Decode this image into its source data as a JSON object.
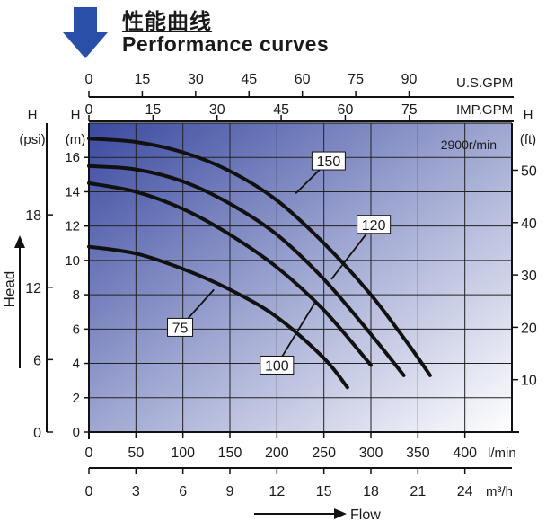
{
  "header": {
    "title_cn": "性能曲线",
    "title_en": "Performance curves"
  },
  "chart_data": {
    "type": "line",
    "speed_label": "2900r/min",
    "colors": {
      "gradient_start": "#3b4aa0",
      "gradient_end": "#ffffff",
      "curve": "#111111",
      "arrow": "#2a4fa8"
    },
    "axes": {
      "x_lmin": {
        "unit": "l/min",
        "ticks": [
          "0",
          "50",
          "100",
          "150",
          "200",
          "250",
          "300",
          "350",
          "400"
        ],
        "range": [
          0,
          450
        ]
      },
      "x_m3h": {
        "unit": "m³/h",
        "ticks": [
          "0",
          "3",
          "6",
          "9",
          "12",
          "15",
          "18",
          "21",
          "24"
        ],
        "range": [
          0,
          27
        ]
      },
      "x_usgpm": {
        "unit": "U.S.GPM",
        "ticks": [
          "0",
          "15",
          "30",
          "45",
          "60",
          "75",
          "90"
        ],
        "range": [
          0,
          118.9
        ]
      },
      "x_impgpm": {
        "unit": "IMP.GPM",
        "ticks": [
          "0",
          "15",
          "30",
          "45",
          "60",
          "75"
        ],
        "range": [
          0,
          99
        ]
      },
      "y_m": {
        "unit_top": "H",
        "unit": "(m)",
        "ticks": [
          "0",
          "2",
          "4",
          "6",
          "8",
          "10",
          "12",
          "14",
          "16"
        ],
        "range": [
          0,
          18
        ]
      },
      "y_psi": {
        "unit_top": "H",
        "unit": "(psi)",
        "ticks": [
          "0",
          "6",
          "12",
          "18"
        ],
        "range": [
          0,
          25.6
        ]
      },
      "y_ft": {
        "unit_top": "H",
        "unit": "(ft)",
        "ticks": [
          "10",
          "20",
          "30",
          "40",
          "50"
        ],
        "range": [
          0,
          59
        ]
      }
    },
    "ylabel": "Head",
    "xlabel": "Flow",
    "grid": true,
    "series": [
      {
        "name": "150",
        "x": [
          0,
          50,
          100,
          150,
          200,
          250,
          300,
          340,
          363
        ],
        "y": [
          17.1,
          16.9,
          16.3,
          15.2,
          13.5,
          11.0,
          8.0,
          5.1,
          3.3
        ]
      },
      {
        "name": "120",
        "x": [
          0,
          50,
          100,
          150,
          200,
          250,
          300,
          335
        ],
        "y": [
          15.5,
          15.3,
          14.6,
          13.3,
          11.5,
          8.9,
          5.7,
          3.3
        ]
      },
      {
        "name": "100",
        "x": [
          0,
          50,
          100,
          150,
          200,
          250,
          300
        ],
        "y": [
          14.5,
          14.0,
          13.0,
          11.5,
          9.6,
          7.1,
          3.9
        ]
      },
      {
        "name": "75",
        "x": [
          0,
          50,
          100,
          150,
          200,
          250,
          275
        ],
        "y": [
          10.8,
          10.4,
          9.5,
          8.3,
          6.7,
          4.3,
          2.6
        ]
      }
    ],
    "labels": [
      {
        "text": "150",
        "box_x": 255,
        "box_y": 15.8,
        "pt_x": 220,
        "pt_y": 13.9
      },
      {
        "text": "120",
        "box_x": 303,
        "box_y": 12.1,
        "pt_x": 258,
        "pt_y": 8.9
      },
      {
        "text": "100",
        "box_x": 200,
        "box_y": 3.9,
        "pt_x": 240,
        "pt_y": 7.5
      },
      {
        "text": "75",
        "box_x": 97,
        "box_y": 6.1,
        "pt_x": 133,
        "pt_y": 8.3
      }
    ]
  }
}
